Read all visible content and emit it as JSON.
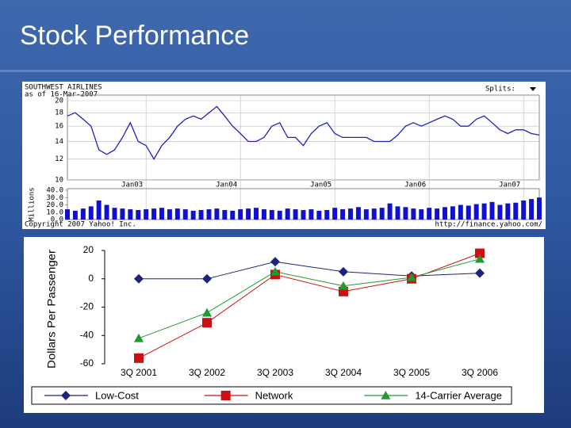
{
  "title": "Stock Performance",
  "chart_data": [
    {
      "type": "line",
      "title": "SOUTHWEST AIRLINES",
      "subtitle": "as of 16-Mar-2007",
      "annotations": [
        "Splits:",
        "Copyright 2007 Yahoo! Inc.",
        "http://finance.yahoo.com/"
      ],
      "log_scale": true,
      "grid": true,
      "color": "#2020c0",
      "categories": [
        null,
        null,
        null,
        null,
        null,
        null,
        null,
        null,
        null,
        null,
        "Jan03",
        null,
        null,
        null,
        null,
        null,
        null,
        null,
        null,
        null,
        null,
        null,
        "Jan04",
        null,
        null,
        null,
        null,
        null,
        null,
        null,
        null,
        null,
        null,
        null,
        "Jan05",
        null,
        null,
        null,
        null,
        null,
        null,
        null,
        null,
        null,
        null,
        null,
        "Jan06",
        null,
        null,
        null,
        null,
        null,
        null,
        null,
        null,
        null,
        null,
        null,
        "Jan07",
        null,
        null
      ],
      "values": [
        17.5,
        18,
        17,
        16,
        13,
        12.5,
        13,
        14.5,
        16.5,
        14,
        13.5,
        12,
        13.5,
        14.5,
        16,
        17,
        17.5,
        17,
        18,
        19,
        17.5,
        16,
        15,
        14,
        14,
        14.5,
        16,
        16.5,
        14.5,
        14.5,
        13.5,
        15,
        16,
        16.5,
        15,
        14.5,
        14.5,
        14.5,
        14.5,
        14,
        14,
        14,
        14.8,
        16,
        16.5,
        16,
        16.5,
        17,
        17.5,
        17,
        16,
        16,
        17,
        17.5,
        16.5,
        15.5,
        15,
        15.5,
        15.5,
        15,
        14.8
      ],
      "ylim": [
        10,
        20
      ],
      "yticks": [
        10,
        12,
        14,
        16,
        18,
        20
      ],
      "volume": {
        "label": "Millions",
        "color": "#1010d0",
        "ylim": [
          0,
          40
        ],
        "yticks": [
          {
            "value": 0,
            "label": "0.0"
          },
          {
            "value": 10,
            "label": "10.0"
          },
          {
            "value": 20,
            "label": "20.0"
          },
          {
            "value": 30,
            "label": "30.0"
          },
          {
            "value": 40,
            "label": "40.0"
          }
        ],
        "values": [
          14,
          12,
          15,
          18,
          26,
          20,
          16,
          15,
          14,
          13,
          14,
          15,
          16,
          14,
          15,
          14,
          12,
          13,
          14,
          15,
          13,
          12,
          14,
          15,
          16,
          14,
          13,
          12,
          15,
          14,
          13,
          14,
          12,
          13,
          16,
          14,
          15,
          17,
          14,
          15,
          16,
          22,
          18,
          17,
          15,
          14,
          16,
          15,
          17,
          18,
          20,
          19,
          21,
          22,
          24,
          20,
          22,
          23,
          26,
          28,
          30
        ]
      }
    },
    {
      "type": "line",
      "y_label": "Dollars Per Passenger",
      "grid": false,
      "categories": [
        "3Q 2001",
        "3Q 2002",
        "3Q 2003",
        "3Q 2004",
        "3Q 2005",
        "3Q 2006"
      ],
      "ylim": [
        -60,
        20
      ],
      "yticks": [
        -60,
        -40,
        -20,
        0,
        20
      ],
      "legend": "bottom",
      "series": [
        {
          "name": "Low-Cost",
          "color": "#1a237e",
          "marker": "diamond",
          "values": [
            0,
            0,
            12,
            5,
            2,
            4
          ]
        },
        {
          "name": "Network",
          "color": "#cc1010",
          "marker": "square",
          "values": [
            -56,
            -31,
            3,
            -9,
            0,
            18
          ]
        },
        {
          "name": "14-Carrier Average",
          "color": "#1e9a30",
          "marker": "triangle",
          "values": [
            -42,
            -24,
            5,
            -5,
            1,
            14
          ]
        }
      ]
    }
  ]
}
